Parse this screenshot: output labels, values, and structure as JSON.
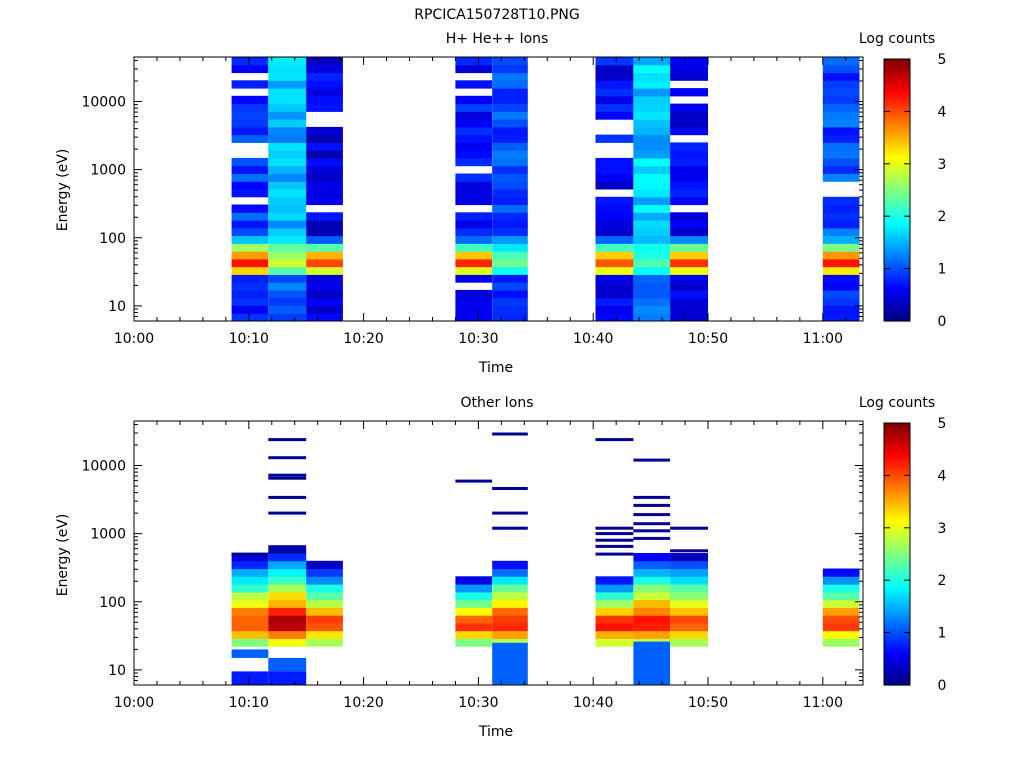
{
  "figure_title": "RPCICA150728T10.PNG",
  "chart_data": [
    {
      "type": "heatmap",
      "title": "H+ He++ Ions",
      "xlabel": "Time",
      "ylabel": "Energy (eV)",
      "x_ticks": [
        "10:00",
        "10:10",
        "10:20",
        "10:30",
        "10:40",
        "10:50",
        "11:00"
      ],
      "y_ticks": [
        "10",
        "100",
        "1000",
        "10000"
      ],
      "y_scale": "log",
      "ylim": [
        6,
        45000
      ],
      "xlim_minutes": [
        0,
        63.5
      ],
      "colorbar": {
        "label": "Log counts",
        "ticks": [
          "0",
          "1",
          "2",
          "3",
          "4",
          "5"
        ],
        "range": [
          0,
          5
        ]
      },
      "columns": [
        {
          "start_min": 8.5,
          "end_min": 11.7,
          "peak": 4.3,
          "floor": 0.9,
          "gaps": [
            2500,
            14000,
            23000,
            380,
            1700
          ]
        },
        {
          "start_min": 11.7,
          "end_min": 15.0,
          "peak": 3.0,
          "floor": 1.5,
          "gaps": []
        },
        {
          "start_min": 15.0,
          "end_min": 18.2,
          "peak": 4.3,
          "floor": 0.5,
          "gaps": [
            5000,
            6200,
            260
          ]
        },
        {
          "start_min": 28.0,
          "end_min": 31.2,
          "peak": 4.3,
          "floor": 0.7,
          "gaps": [
            1100,
            13000,
            22000,
            300,
            22
          ]
        },
        {
          "start_min": 31.2,
          "end_min": 34.3,
          "peak": 2.4,
          "floor": 1.0,
          "gaps": []
        },
        {
          "start_min": 40.2,
          "end_min": 43.5,
          "peak": 4.3,
          "floor": 0.6,
          "gaps": [
            5000,
            3800,
            1900,
            2500,
            470
          ]
        },
        {
          "start_min": 43.5,
          "end_min": 46.7,
          "peak": 2.3,
          "floor": 1.6,
          "gaps": []
        },
        {
          "start_min": 46.7,
          "end_min": 50.0,
          "peak": 4.3,
          "floor": 0.5,
          "gaps": [
            2900,
            10500,
            16500,
            290
          ]
        },
        {
          "start_min": 60.0,
          "end_min": 63.2,
          "peak": 4.3,
          "floor": 1.0,
          "gaps": [
            620,
            430
          ]
        }
      ]
    },
    {
      "type": "heatmap",
      "title": "Other Ions",
      "xlabel": "Time",
      "ylabel": "Energy (eV)",
      "x_ticks": [
        "10:00",
        "10:10",
        "10:20",
        "10:30",
        "10:40",
        "10:50",
        "11:00"
      ],
      "y_ticks": [
        "10",
        "100",
        "1000",
        "10000"
      ],
      "y_scale": "log",
      "ylim": [
        6,
        45000
      ],
      "xlim_minutes": [
        0,
        63.5
      ],
      "colorbar": {
        "label": "Log counts",
        "ticks": [
          "0",
          "1",
          "2",
          "3",
          "4",
          "5"
        ],
        "range": [
          0,
          5
        ]
      },
      "columns": [
        {
          "start_min": 8.5,
          "end_min": 11.7,
          "low": 6,
          "high": 500,
          "peak": 4.3,
          "extra_low": [
            [
              15,
              20
            ],
            [
              6,
              9.5
            ]
          ],
          "lines": [
            500
          ]
        },
        {
          "start_min": 11.7,
          "end_min": 15.0,
          "low": 6,
          "high": 600,
          "peak": 4.9,
          "extra_low": [
            [
              9.5,
              15
            ],
            [
              6,
              9.5
            ]
          ],
          "lines": [
            24000,
            13000,
            7200,
            6500,
            3400,
            2000
          ]
        },
        {
          "start_min": 15.0,
          "end_min": 18.2,
          "low": 20,
          "high": 360,
          "peak": 4.3,
          "extra_low": [],
          "lines": []
        },
        {
          "start_min": 28.0,
          "end_min": 31.2,
          "low": 20,
          "high": 230,
          "peak": 4.3,
          "extra_low": [],
          "lines": [
            5900
          ]
        },
        {
          "start_min": 31.2,
          "end_min": 34.3,
          "low": 6,
          "high": 450,
          "peak": 4.5,
          "extra_low": [
            [
              6,
              25
            ]
          ],
          "lines": [
            29000,
            4600,
            2000,
            1200
          ]
        },
        {
          "start_min": 40.2,
          "end_min": 43.5,
          "low": 25,
          "high": 230,
          "peak": 4.4,
          "extra_low": [],
          "lines": [
            24000,
            1200,
            1000,
            800,
            650,
            500
          ]
        },
        {
          "start_min": 43.5,
          "end_min": 46.7,
          "low": 6,
          "high": 550,
          "peak": 4.5,
          "extra_low": [
            [
              6,
              26
            ]
          ],
          "lines": [
            12000,
            3400,
            2600,
            1900,
            1400,
            1100,
            850
          ]
        },
        {
          "start_min": 46.7,
          "end_min": 50.0,
          "low": 25,
          "high": 480,
          "peak": 4.3,
          "extra_low": [],
          "lines": [
            1200,
            560
          ]
        },
        {
          "start_min": 60.0,
          "end_min": 63.2,
          "low": 25,
          "high": 350,
          "peak": 4.3,
          "extra_low": [],
          "lines": []
        }
      ]
    }
  ]
}
